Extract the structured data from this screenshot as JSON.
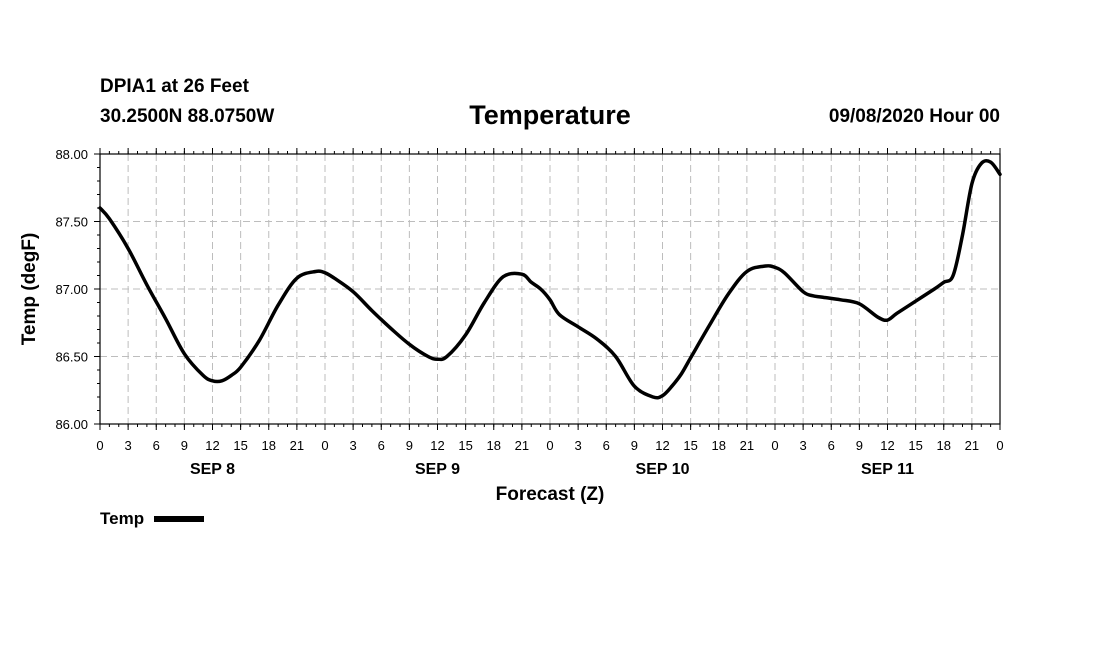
{
  "header": {
    "station": "DPIA1 at 26 Feet",
    "coords": "30.2500N 88.0750W",
    "datetime": "09/08/2020 Hour 00"
  },
  "legend": {
    "label": "Temp",
    "color": "#000000"
  },
  "chart_data": {
    "type": "line",
    "title": "Temperature",
    "xlabel": "Forecast (Z)",
    "ylabel": "Temp (degF)",
    "ylim": [
      86.0,
      88.0
    ],
    "yticks": [
      "86.00",
      "86.50",
      "87.00",
      "87.50",
      "88.00"
    ],
    "xlim": [
      0,
      96
    ],
    "xtick_labels": [
      "0",
      "3",
      "6",
      "9",
      "12",
      "15",
      "18",
      "21",
      "0",
      "3",
      "6",
      "9",
      "12",
      "15",
      "18",
      "21",
      "0",
      "3",
      "6",
      "9",
      "12",
      "15",
      "18",
      "21",
      "0",
      "3",
      "6",
      "9",
      "12",
      "15",
      "18",
      "21",
      "0"
    ],
    "day_labels": [
      {
        "label": "SEP 8",
        "hour": 12
      },
      {
        "label": "SEP 9",
        "hour": 36
      },
      {
        "label": "SEP 10",
        "hour": 60
      },
      {
        "label": "SEP 11",
        "hour": 84
      }
    ],
    "grid": true,
    "legend_position": "bottom-left",
    "series": [
      {
        "name": "Temp",
        "color": "#000000",
        "x": [
          0,
          1,
          3,
          5,
          7,
          9,
          11,
          12,
          13,
          14,
          15,
          17,
          19,
          21,
          23,
          24,
          25,
          27,
          29,
          31,
          33,
          35,
          36,
          37,
          39,
          41,
          43,
          45,
          46,
          47,
          48,
          49,
          51,
          53,
          55,
          57,
          59,
          60,
          61,
          62,
          63,
          65,
          67,
          69,
          71,
          72,
          73,
          75,
          76,
          77,
          79,
          81,
          83,
          84,
          85,
          87,
          89,
          90,
          91,
          92,
          93,
          94,
          95,
          96
        ],
        "y": [
          87.6,
          87.52,
          87.3,
          87.03,
          86.78,
          86.52,
          86.36,
          86.32,
          86.32,
          86.36,
          86.42,
          86.62,
          86.88,
          87.08,
          87.13,
          87.12,
          87.08,
          86.98,
          86.84,
          86.71,
          86.59,
          86.5,
          86.48,
          86.5,
          86.66,
          86.9,
          87.09,
          87.11,
          87.05,
          87.0,
          86.92,
          86.81,
          86.72,
          86.63,
          86.5,
          86.28,
          86.2,
          86.21,
          86.28,
          86.37,
          86.49,
          86.73,
          86.96,
          87.13,
          87.17,
          87.16,
          87.12,
          86.98,
          86.95,
          86.94,
          86.92,
          86.89,
          86.79,
          86.77,
          86.82,
          86.91,
          87.0,
          87.05,
          87.1,
          87.4,
          87.78,
          87.93,
          87.94,
          87.85
        ]
      }
    ]
  }
}
